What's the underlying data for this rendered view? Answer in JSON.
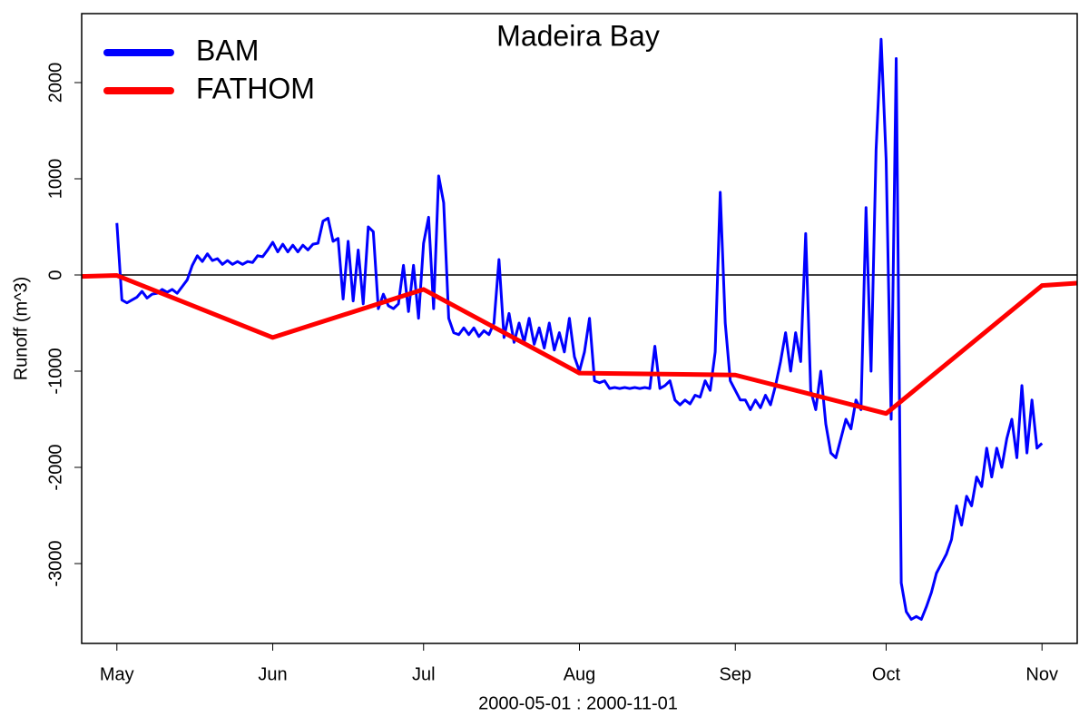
{
  "chart_data": {
    "type": "line",
    "title": "Madeira Bay",
    "xlabel": "2000-05-01 : 2000-11-01",
    "ylabel": "Runoff (m^3)",
    "xlim": [
      "2000-04-24",
      "2000-11-08"
    ],
    "ylim": [
      -3830,
      2717
    ],
    "xticks": [
      {
        "value": "2000-05-01",
        "label": "May"
      },
      {
        "value": "2000-06-01",
        "label": "Jun"
      },
      {
        "value": "2000-07-01",
        "label": "Jul"
      },
      {
        "value": "2000-08-01",
        "label": "Aug"
      },
      {
        "value": "2000-09-01",
        "label": "Sep"
      },
      {
        "value": "2000-10-01",
        "label": "Oct"
      },
      {
        "value": "2000-11-01",
        "label": "Nov"
      }
    ],
    "yticks": [
      -3000,
      -2000,
      -1000,
      0,
      1000,
      2000
    ],
    "hline": 0,
    "legend": "top-left",
    "series": [
      {
        "name": "BAM",
        "color": "#0000ff",
        "width": 3,
        "x": [
          "2000-05-01",
          "2000-05-02",
          "2000-05-03",
          "2000-05-04",
          "2000-05-05",
          "2000-05-06",
          "2000-05-07",
          "2000-05-08",
          "2000-05-09",
          "2000-05-10",
          "2000-05-11",
          "2000-05-12",
          "2000-05-13",
          "2000-05-14",
          "2000-05-15",
          "2000-05-16",
          "2000-05-17",
          "2000-05-18",
          "2000-05-19",
          "2000-05-20",
          "2000-05-21",
          "2000-05-22",
          "2000-05-23",
          "2000-05-24",
          "2000-05-25",
          "2000-05-26",
          "2000-05-27",
          "2000-05-28",
          "2000-05-29",
          "2000-05-30",
          "2000-05-31",
          "2000-06-01",
          "2000-06-02",
          "2000-06-03",
          "2000-06-04",
          "2000-06-05",
          "2000-06-06",
          "2000-06-07",
          "2000-06-08",
          "2000-06-09",
          "2000-06-10",
          "2000-06-11",
          "2000-06-12",
          "2000-06-13",
          "2000-06-14",
          "2000-06-15",
          "2000-06-16",
          "2000-06-17",
          "2000-06-18",
          "2000-06-19",
          "2000-06-20",
          "2000-06-21",
          "2000-06-22",
          "2000-06-23",
          "2000-06-24",
          "2000-06-25",
          "2000-06-26",
          "2000-06-27",
          "2000-06-28",
          "2000-06-29",
          "2000-06-30",
          "2000-07-01",
          "2000-07-02",
          "2000-07-03",
          "2000-07-04",
          "2000-07-05",
          "2000-07-06",
          "2000-07-07",
          "2000-07-08",
          "2000-07-09",
          "2000-07-10",
          "2000-07-11",
          "2000-07-12",
          "2000-07-13",
          "2000-07-14",
          "2000-07-15",
          "2000-07-16",
          "2000-07-17",
          "2000-07-18",
          "2000-07-19",
          "2000-07-20",
          "2000-07-21",
          "2000-07-22",
          "2000-07-23",
          "2000-07-24",
          "2000-07-25",
          "2000-07-26",
          "2000-07-27",
          "2000-07-28",
          "2000-07-29",
          "2000-07-30",
          "2000-07-31",
          "2000-08-01",
          "2000-08-02",
          "2000-08-03",
          "2000-08-04",
          "2000-08-05",
          "2000-08-06",
          "2000-08-07",
          "2000-08-08",
          "2000-08-09",
          "2000-08-10",
          "2000-08-11",
          "2000-08-12",
          "2000-08-13",
          "2000-08-14",
          "2000-08-15",
          "2000-08-16",
          "2000-08-17",
          "2000-08-18",
          "2000-08-19",
          "2000-08-20",
          "2000-08-21",
          "2000-08-22",
          "2000-08-23",
          "2000-08-24",
          "2000-08-25",
          "2000-08-26",
          "2000-08-27",
          "2000-08-28",
          "2000-08-29",
          "2000-08-30",
          "2000-08-31",
          "2000-09-01",
          "2000-09-02",
          "2000-09-03",
          "2000-09-04",
          "2000-09-05",
          "2000-09-06",
          "2000-09-07",
          "2000-09-08",
          "2000-09-09",
          "2000-09-10",
          "2000-09-11",
          "2000-09-12",
          "2000-09-13",
          "2000-09-14",
          "2000-09-15",
          "2000-09-16",
          "2000-09-17",
          "2000-09-18",
          "2000-09-19",
          "2000-09-20",
          "2000-09-21",
          "2000-09-22",
          "2000-09-23",
          "2000-09-24",
          "2000-09-25",
          "2000-09-26",
          "2000-09-27",
          "2000-09-28",
          "2000-09-29",
          "2000-09-30",
          "2000-10-01",
          "2000-10-02",
          "2000-10-03",
          "2000-10-04",
          "2000-10-05",
          "2000-10-06",
          "2000-10-07",
          "2000-10-08",
          "2000-10-09",
          "2000-10-10",
          "2000-10-11",
          "2000-10-12",
          "2000-10-13",
          "2000-10-14",
          "2000-10-15",
          "2000-10-16",
          "2000-10-17",
          "2000-10-18",
          "2000-10-19",
          "2000-10-20",
          "2000-10-21",
          "2000-10-22",
          "2000-10-23",
          "2000-10-24",
          "2000-10-25",
          "2000-10-26",
          "2000-10-27",
          "2000-10-28",
          "2000-10-29",
          "2000-10-30",
          "2000-10-31",
          "2000-11-01"
        ],
        "values": [
          540,
          -260,
          -290,
          -260,
          -230,
          -170,
          -240,
          -200,
          -190,
          -150,
          -180,
          -150,
          -190,
          -120,
          -50,
          100,
          200,
          140,
          220,
          150,
          170,
          110,
          150,
          110,
          140,
          110,
          140,
          130,
          200,
          190,
          260,
          340,
          240,
          320,
          240,
          310,
          240,
          310,
          260,
          320,
          330,
          560,
          590,
          350,
          380,
          -250,
          350,
          -270,
          260,
          -300,
          500,
          450,
          -350,
          -200,
          -320,
          -350,
          -300,
          100,
          -380,
          100,
          -450,
          330,
          600,
          -350,
          1030,
          750,
          -450,
          -600,
          -620,
          -550,
          -620,
          -550,
          -640,
          -580,
          -620,
          -500,
          160,
          -650,
          -400,
          -700,
          -500,
          -700,
          -450,
          -720,
          -550,
          -760,
          -500,
          -780,
          -600,
          -800,
          -450,
          -850,
          -1000,
          -800,
          -450,
          -1100,
          -1120,
          -1100,
          -1180,
          -1170,
          -1180,
          -1170,
          -1180,
          -1170,
          -1180,
          -1170,
          -1180,
          -740,
          -1180,
          -1150,
          -1100,
          -1300,
          -1350,
          -1300,
          -1340,
          -1250,
          -1270,
          -1100,
          -1200,
          -800,
          860,
          -500,
          -1100,
          -1200,
          -1300,
          -1300,
          -1400,
          -1300,
          -1380,
          -1250,
          -1350,
          -1150,
          -900,
          -600,
          -1000,
          -600,
          -900,
          430,
          -1200,
          -1400,
          -1000,
          -1550,
          -1850,
          -1900,
          -1700,
          -1500,
          -1600,
          -1300,
          -1400,
          700,
          -1000,
          1300,
          2450,
          1200,
          -1500,
          2250,
          -3200,
          -3500,
          -3580,
          -3550,
          -3580,
          -3450,
          -3300,
          -3100,
          -3000,
          -2900,
          -2750,
          -2400,
          -2600,
          -2300,
          -2400,
          -2100,
          -2200,
          -1800,
          -2100,
          -1800,
          -2000,
          -1700,
          -1500,
          -1900,
          -1150,
          -1850,
          -1300,
          -1800,
          -1750
        ]
      },
      {
        "name": "FATHOM",
        "color": "#ff0000",
        "width": 5,
        "x": [
          "2000-04-24",
          "2000-05-01",
          "2000-06-01",
          "2000-07-01",
          "2000-08-01",
          "2000-09-01",
          "2000-10-01",
          "2000-11-01",
          "2000-11-08"
        ],
        "values": [
          -15,
          -5,
          -650,
          -150,
          -1020,
          -1040,
          -1440,
          -110,
          -85
        ]
      }
    ]
  }
}
